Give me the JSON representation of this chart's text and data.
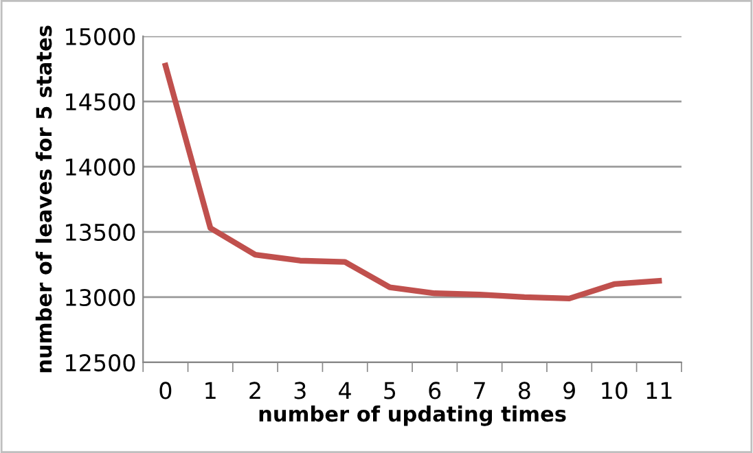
{
  "chart_data": {
    "type": "line",
    "xlabel": "number of updating times",
    "ylabel": "number of leaves for 5 states",
    "categories": [
      "0",
      "1",
      "2",
      "3",
      "4",
      "5",
      "6",
      "7",
      "8",
      "9",
      "10",
      "11"
    ],
    "series": [
      {
        "color": "#c0504d",
        "values": [
          14775,
          13530,
          13325,
          13280,
          13270,
          13075,
          13030,
          13020,
          13000,
          12990,
          13100,
          13125
        ]
      }
    ],
    "ylim": [
      12500,
      15000
    ],
    "yticks": [
      12500,
      13000,
      13500,
      14000,
      14500,
      15000
    ],
    "grid": "y",
    "legend": false,
    "marker": "none",
    "line_style": "solid"
  }
}
